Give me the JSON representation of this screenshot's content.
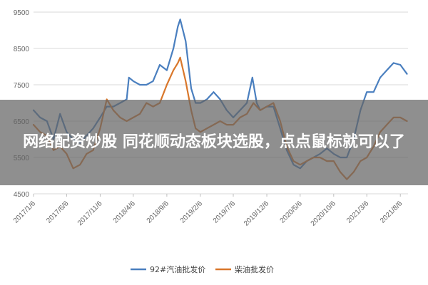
{
  "overlay": {
    "headline": "网络配资炒股 同花顺动态板块选股，点点鼠标就可以了"
  },
  "colors": {
    "grid": "#d9d9d9",
    "axis_text": "#666666",
    "overlay_bg": "rgba(100,100,100,0.72)",
    "overlay_text": "#ffffff"
  },
  "chart_data": {
    "type": "line",
    "title": "",
    "xlabel": "",
    "ylabel": "",
    "ylim": [
      4500,
      9500
    ],
    "yticks": [
      4500,
      5500,
      6500,
      7500,
      8500,
      9500
    ],
    "grid": true,
    "legend_position": "bottom",
    "xlim": [
      "2017-01-06",
      "2021-09-10"
    ],
    "xticks": [
      "2017/1/6",
      "2017/6/6",
      "2017/11/6",
      "2018/4/6",
      "2018/9/6",
      "2019/2/6",
      "2019/7/6",
      "2019/12/6",
      "2020/5/6",
      "2020/10/6",
      "2021/3/6",
      "2021/8/6"
    ],
    "series": [
      {
        "name": "92#汽油批发价",
        "color": "#4a7fbf",
        "points": [
          [
            "2017-01-06",
            6800
          ],
          [
            "2017-02-05",
            6600
          ],
          [
            "2017-03-08",
            6500
          ],
          [
            "2017-04-07",
            6000
          ],
          [
            "2017-05-07",
            6700
          ],
          [
            "2017-06-06",
            6200
          ],
          [
            "2017-07-06",
            6000
          ],
          [
            "2017-08-06",
            5900
          ],
          [
            "2017-09-05",
            6100
          ],
          [
            "2017-10-05",
            6300
          ],
          [
            "2017-11-06",
            6600
          ],
          [
            "2017-12-06",
            6900
          ],
          [
            "2018-01-05",
            6900
          ],
          [
            "2018-02-05",
            7000
          ],
          [
            "2018-03-07",
            7100
          ],
          [
            "2018-03-17",
            7700
          ],
          [
            "2018-04-06",
            7600
          ],
          [
            "2018-05-06",
            7500
          ],
          [
            "2018-06-05",
            7500
          ],
          [
            "2018-07-05",
            7600
          ],
          [
            "2018-08-05",
            8050
          ],
          [
            "2018-09-06",
            7900
          ],
          [
            "2018-10-06",
            8500
          ],
          [
            "2018-10-26",
            9100
          ],
          [
            "2018-11-06",
            9300
          ],
          [
            "2018-12-01",
            8700
          ],
          [
            "2018-12-26",
            7400
          ],
          [
            "2019-01-15",
            7000
          ],
          [
            "2019-02-06",
            7000
          ],
          [
            "2019-03-08",
            7100
          ],
          [
            "2019-04-07",
            7300
          ],
          [
            "2019-05-07",
            7100
          ],
          [
            "2019-06-06",
            6800
          ],
          [
            "2019-07-06",
            6600
          ],
          [
            "2019-08-06",
            6800
          ],
          [
            "2019-09-06",
            7000
          ],
          [
            "2019-10-01",
            7700
          ],
          [
            "2019-10-21",
            7000
          ],
          [
            "2019-11-06",
            6800
          ],
          [
            "2019-12-06",
            6900
          ],
          [
            "2020-01-05",
            6900
          ],
          [
            "2020-02-05",
            6300
          ],
          [
            "2020-03-06",
            5700
          ],
          [
            "2020-04-06",
            5300
          ],
          [
            "2020-05-06",
            5200
          ],
          [
            "2020-06-05",
            5400
          ],
          [
            "2020-07-06",
            5500
          ],
          [
            "2020-08-05",
            5600
          ],
          [
            "2020-09-05",
            5750
          ],
          [
            "2020-10-06",
            5600
          ],
          [
            "2020-11-05",
            5500
          ],
          [
            "2020-12-05",
            5500
          ],
          [
            "2021-01-05",
            6000
          ],
          [
            "2021-02-05",
            6800
          ],
          [
            "2021-03-06",
            7300
          ],
          [
            "2021-04-06",
            7300
          ],
          [
            "2021-05-06",
            7700
          ],
          [
            "2021-06-05",
            7900
          ],
          [
            "2021-07-06",
            8100
          ],
          [
            "2021-08-06",
            8050
          ],
          [
            "2021-09-05",
            7800
          ]
        ]
      },
      {
        "name": "柴油批发价",
        "color": "#d9772b",
        "points": [
          [
            "2017-01-06",
            6400
          ],
          [
            "2017-02-05",
            6200
          ],
          [
            "2017-03-08",
            6100
          ],
          [
            "2017-04-07",
            5700
          ],
          [
            "2017-05-07",
            5800
          ],
          [
            "2017-06-06",
            5600
          ],
          [
            "2017-07-06",
            5200
          ],
          [
            "2017-08-06",
            5300
          ],
          [
            "2017-09-05",
            5600
          ],
          [
            "2017-10-05",
            5700
          ],
          [
            "2017-11-06",
            6300
          ],
          [
            "2017-12-06",
            7100
          ],
          [
            "2018-01-05",
            6800
          ],
          [
            "2018-02-05",
            6600
          ],
          [
            "2018-03-07",
            6500
          ],
          [
            "2018-04-06",
            6600
          ],
          [
            "2018-05-06",
            6700
          ],
          [
            "2018-06-05",
            7000
          ],
          [
            "2018-07-05",
            6900
          ],
          [
            "2018-08-05",
            7000
          ],
          [
            "2018-09-06",
            7500
          ],
          [
            "2018-10-06",
            7900
          ],
          [
            "2018-10-26",
            8100
          ],
          [
            "2018-11-06",
            8250
          ],
          [
            "2018-12-01",
            7600
          ],
          [
            "2018-12-26",
            6800
          ],
          [
            "2019-01-15",
            6300
          ],
          [
            "2019-02-06",
            6200
          ],
          [
            "2019-03-08",
            6300
          ],
          [
            "2019-04-07",
            6400
          ],
          [
            "2019-05-07",
            6500
          ],
          [
            "2019-06-06",
            6400
          ],
          [
            "2019-07-06",
            6400
          ],
          [
            "2019-08-06",
            6600
          ],
          [
            "2019-09-06",
            6700
          ],
          [
            "2019-10-06",
            7000
          ],
          [
            "2019-11-06",
            6800
          ],
          [
            "2019-12-06",
            6900
          ],
          [
            "2020-01-05",
            7000
          ],
          [
            "2020-02-05",
            6500
          ],
          [
            "2020-03-06",
            5800
          ],
          [
            "2020-04-06",
            5400
          ],
          [
            "2020-05-06",
            5300
          ],
          [
            "2020-06-05",
            5400
          ],
          [
            "2020-07-06",
            5500
          ],
          [
            "2020-08-05",
            5500
          ],
          [
            "2020-09-05",
            5400
          ],
          [
            "2020-10-06",
            5400
          ],
          [
            "2020-11-05",
            5100
          ],
          [
            "2020-12-05",
            4900
          ],
          [
            "2021-01-05",
            5100
          ],
          [
            "2021-02-05",
            5400
          ],
          [
            "2021-03-06",
            5500
          ],
          [
            "2021-04-06",
            5800
          ],
          [
            "2021-05-06",
            6200
          ],
          [
            "2021-06-05",
            6400
          ],
          [
            "2021-07-06",
            6600
          ],
          [
            "2021-08-06",
            6600
          ],
          [
            "2021-09-05",
            6500
          ]
        ]
      }
    ]
  }
}
